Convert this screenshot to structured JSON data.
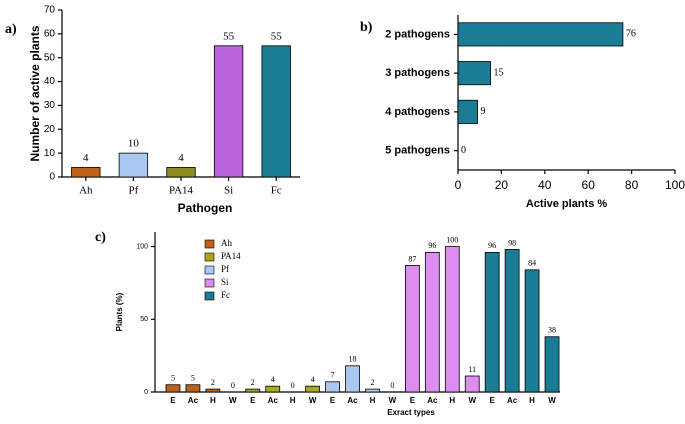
{
  "chart_data": [
    {
      "type": "bar",
      "panel_label": "a)",
      "y_label": "Number of active plants",
      "x_label": "Pathogen",
      "categories": [
        "Ah",
        "Pf",
        "PA14",
        "Si",
        "Fc"
      ],
      "values": [
        4,
        10,
        4,
        55,
        55
      ],
      "colors": [
        "#c0601a",
        "#a9c9f2",
        "#8c8c1c",
        "#b964da",
        "#1a7d95"
      ],
      "ylim": [
        0,
        70
      ],
      "yticks": [
        0,
        10,
        20,
        30,
        40,
        50,
        60,
        70
      ]
    },
    {
      "type": "barh",
      "panel_label": "b)",
      "x_label": "Active plants %",
      "categories": [
        "2 pathogens",
        "3 pathogens",
        "4 pathogens",
        "5 pathogens"
      ],
      "values": [
        76,
        15,
        9,
        0
      ],
      "color": "#1a7d95",
      "xlim": [
        0,
        100
      ],
      "xticks": [
        0,
        20,
        40,
        60,
        80,
        100
      ]
    },
    {
      "type": "bar",
      "panel_label": "c)",
      "y_label": "Plants (%)",
      "x_label": "Exract types",
      "categories": [
        "E",
        "Ac",
        "H",
        "W"
      ],
      "series": [
        {
          "name": "Ah",
          "color": "#c0601a",
          "values": [
            5,
            5,
            2,
            0
          ]
        },
        {
          "name": "PA14",
          "color": "#a8a81e",
          "values": [
            2,
            4,
            0,
            4
          ]
        },
        {
          "name": "Pf",
          "color": "#a9c9f2",
          "values": [
            7,
            18,
            2,
            0
          ]
        },
        {
          "name": "Si",
          "color": "#dd8cef",
          "values": [
            87,
            96,
            100,
            11
          ]
        },
        {
          "name": "Fc",
          "color": "#1a7d95",
          "values": [
            96,
            98,
            84,
            38
          ]
        }
      ],
      "ylim": [
        0,
        110
      ],
      "yticks": [
        0,
        50,
        100
      ],
      "legend": "upper left"
    }
  ]
}
